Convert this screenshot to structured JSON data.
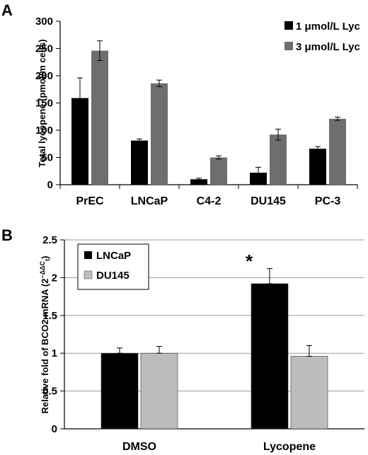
{
  "chart_data": [
    {
      "type": "bar",
      "panel": "A",
      "ylabel": "Total lycopene (pmol/m cells)",
      "ylim": [
        0,
        300
      ],
      "yticks": [
        0,
        50,
        100,
        150,
        200,
        250,
        300
      ],
      "categories": [
        "PrEC",
        "LNCaP",
        "C4-2",
        "DU145",
        "PC-3"
      ],
      "grid": false,
      "legend_position": "top-right",
      "series": [
        {
          "name": "1 μmol/L Lyc",
          "color": "#000000",
          "values": [
            159,
            81,
            10,
            22,
            66
          ],
          "errors": [
            37,
            3,
            2,
            10,
            4
          ]
        },
        {
          "name": "3 μmol/L Lyc",
          "color": "#6e6e6e",
          "values": [
            246,
            186,
            50,
            92,
            121
          ],
          "errors": [
            18,
            6,
            3,
            10,
            3
          ]
        }
      ]
    },
    {
      "type": "bar",
      "panel": "B",
      "ylabel": "Relative fold of BCO2 mRNA (2",
      "ylabel_sup": "−ΔΔC",
      "ylabel_sub": "t",
      "ylabel_close": ")",
      "ylim": [
        0,
        2.5
      ],
      "yticks": [
        "0",
        "0.5",
        "1",
        "1.5",
        "2",
        "2.5"
      ],
      "categories": [
        "DMSO",
        "Lycopene"
      ],
      "grid": true,
      "legend_position": "top-left",
      "annotation": {
        "text": "*",
        "category": "Lycopene",
        "series": "LNCaP"
      },
      "series": [
        {
          "name": "LNCaP",
          "color": "#000000",
          "values": [
            1.0,
            1.92
          ],
          "errors": [
            0.07,
            0.2
          ]
        },
        {
          "name": "DU145",
          "color": "#bdbdbd",
          "values": [
            1.0,
            0.96
          ],
          "errors": [
            0.09,
            0.14
          ]
        }
      ]
    }
  ]
}
